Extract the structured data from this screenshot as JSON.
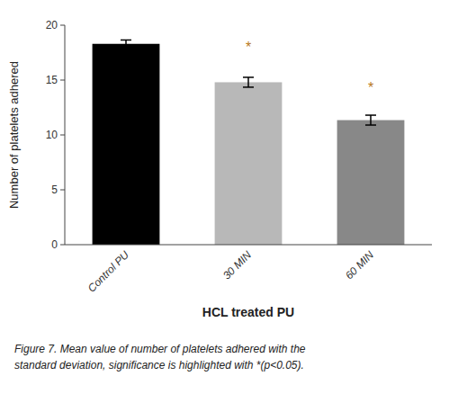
{
  "chart_data": {
    "type": "bar",
    "categories": [
      "Control PU",
      "30 MIN",
      "60 MIN"
    ],
    "values": [
      18.3,
      14.8,
      11.35
    ],
    "errors": [
      0.35,
      0.45,
      0.45
    ],
    "colors": [
      "#000000",
      "#b8b8b8",
      "#888888"
    ],
    "ylim": [
      0,
      20
    ],
    "yticks": [
      0,
      5,
      10,
      15,
      20
    ],
    "ylabel": "Number of platelets adhered",
    "xlabel": "HCL treated PU",
    "grid": false,
    "annotations": [
      {
        "text": "*",
        "category": "30 MIN",
        "y": 17.55,
        "color": "#b87820"
      },
      {
        "text": "*",
        "category": "60 MIN",
        "y": 13.85,
        "color": "#b87820"
      }
    ],
    "caption": [
      "Figure 7. Mean value of number of platelets adhered with the",
      "standard deviation, significance is highlighted with *(p<0.05)."
    ]
  }
}
